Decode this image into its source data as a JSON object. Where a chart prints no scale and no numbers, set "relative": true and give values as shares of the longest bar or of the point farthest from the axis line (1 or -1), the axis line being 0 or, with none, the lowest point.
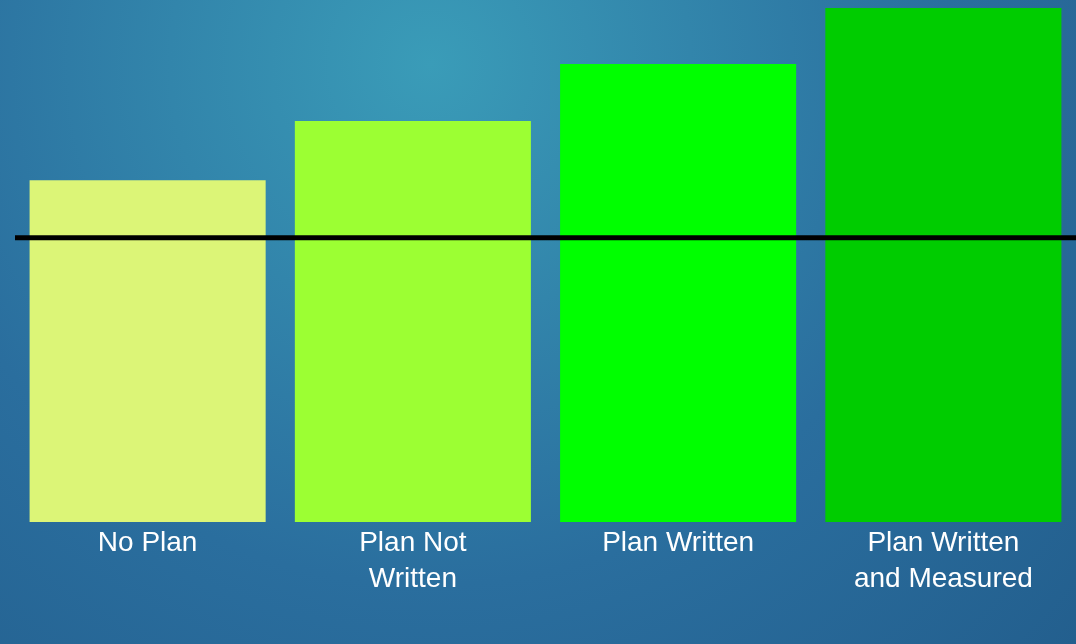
{
  "chart_data": {
    "type": "bar",
    "relative": true,
    "categories": [
      "No Plan",
      "Plan Not Written",
      "Plan Written",
      "Plan Written and Measured"
    ],
    "values": [
      0.665,
      0.78,
      0.891,
      1
    ],
    "colors": [
      "#dcf577",
      "#9cff33",
      "#00ff00",
      "#00cc00"
    ],
    "ref_lines": [
      {
        "axis": "y",
        "value": 0.553,
        "color": "#000000",
        "line_style": "solid"
      }
    ],
    "grid": false,
    "legend": false
  }
}
